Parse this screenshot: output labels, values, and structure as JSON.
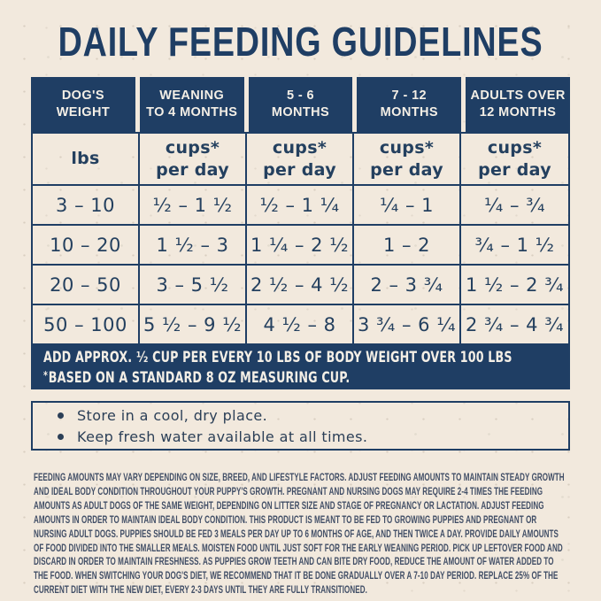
{
  "title": "DAILY FEEDING GUIDELINES",
  "colors": {
    "navy": "#1f3e64",
    "cream_background": "#f2e9dd",
    "table_text": "#24405f",
    "fine_print_text": "#414e66",
    "band_text": "#f4efe6"
  },
  "table": {
    "headers": [
      [
        "DOG'S",
        "WEIGHT"
      ],
      [
        "WEANING",
        "TO 4 MONTHS"
      ],
      [
        "5 - 6",
        "MONTHS"
      ],
      [
        "7 - 12",
        "MONTHS"
      ],
      [
        "ADULTS OVER",
        "12 MONTHS"
      ]
    ],
    "subheaders": [
      [
        "lbs",
        ""
      ],
      [
        "cups*",
        "per day"
      ],
      [
        "cups*",
        "per day"
      ],
      [
        "cups*",
        "per day"
      ],
      [
        "cups*",
        "per day"
      ]
    ],
    "rows": [
      [
        "3 – 10",
        "¹⁄₂ – 1 ¹⁄₂",
        "¹⁄₂ – 1 ¹⁄₄",
        "¹⁄₄ – 1",
        "¹⁄₄ – ³⁄₄"
      ],
      [
        "10 – 20",
        "1 ¹⁄₂ – 3",
        "1 ¹⁄₄ – 2 ¹⁄₂",
        "1 – 2",
        "³⁄₄ – 1 ¹⁄₂"
      ],
      [
        "20 – 50",
        "3 – 5 ¹⁄₂",
        "2 ¹⁄₂ – 4 ¹⁄₂",
        "2 – 3 ³⁄₄",
        "1 ¹⁄₂ – 2 ³⁄₄"
      ],
      [
        "50 – 100",
        "5 ¹⁄₂ – 9 ¹⁄₂",
        "4 ¹⁄₂ – 8",
        "3 ³⁄₄ – 6 ¹⁄₄",
        "2 ³⁄₄ – 4 ³⁄₄"
      ]
    ],
    "note_line1": "ADD APPROX. ¹⁄₂ CUP PER EVERY 10 LBS OF BODY WEIGHT OVER 100 LBS",
    "note_line2_star": "*",
    "note_line2": "BASED ON A STANDARD 8 OZ MEASURING CUP."
  },
  "storage": {
    "items": [
      "Store in a cool, dry place.",
      "Keep fresh water available at all times."
    ]
  },
  "fine_print": "FEEDING AMOUNTS MAY VARY DEPENDING ON SIZE, BREED, AND LIFESTYLE FACTORS. ADJUST FEEDING AMOUNTS TO MAINTAIN STEADY GROWTH AND IDEAL BODY CONDITION THROUGHOUT YOUR PUPPY'S GROWTH. PREGNANT AND NURSING DOGS MAY REQUIRE 2-4 TIMES THE FEEDING AMOUNTS AS ADULT DOGS OF THE SAME WEIGHT, DEPENDING ON LITTER SIZE AND STAGE OF PREGNANCY OR LACTATION. ADJUST FEEDING AMOUNTS IN ORDER TO MAINTAIN IDEAL BODY CONDITION. THIS PRODUCT IS MEANT TO BE FED TO GROWING PUPPIES AND PREGNANT OR NURSING ADULT DOGS. PUPPIES SHOULD BE FED 3 MEALS PER DAY UP TO 6 MONTHS OF AGE, AND THEN TWICE A DAY. PROVIDE DAILY AMOUNTS OF FOOD DIVIDED INTO THE SMALLER MEALS. MOISTEN FOOD UNTIL JUST SOFT FOR THE EARLY WEANING PERIOD. PICK UP LEFTOVER FOOD AND DISCARD IN ORDER TO MAINTAIN FRESHNESS. AS PUPPIES GROW TEETH AND CAN BITE DRY FOOD, REDUCE THE AMOUNT OF WATER ADDED TO THE FOOD. WHEN SWITCHING YOUR DOG'S DIET, WE RECOMMEND THAT IT BE DONE GRADUALLY OVER A 7-10 DAY PERIOD. REPLACE 25% OF THE CURRENT DIET WITH THE NEW DIET, EVERY 2-3 DAYS UNTIL THEY ARE FULLY TRANSITIONED."
}
